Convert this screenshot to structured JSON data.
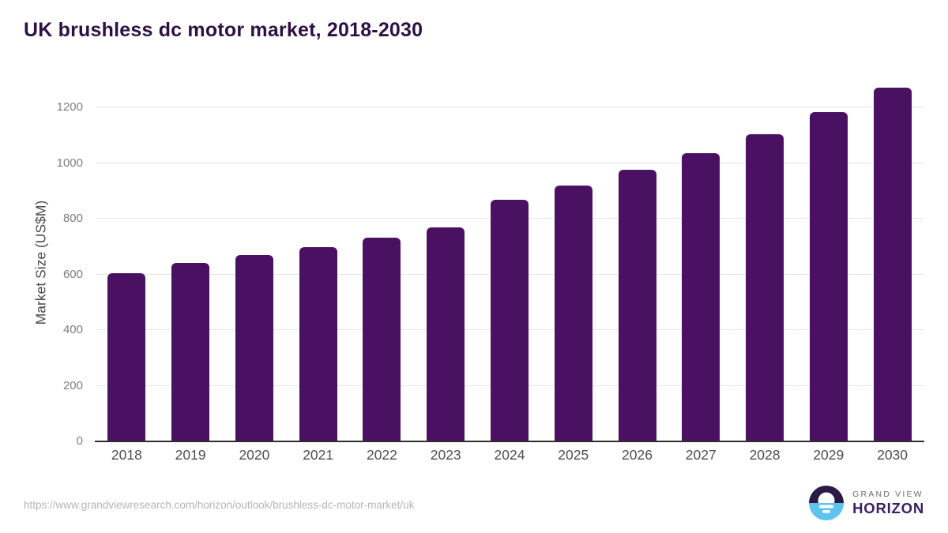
{
  "header": {
    "title": "UK brushless dc motor market, 2018-2030"
  },
  "chart_data": {
    "type": "bar",
    "title": "UK brushless dc motor market, 2018-2030",
    "categories": [
      "2018",
      "2019",
      "2020",
      "2021",
      "2022",
      "2023",
      "2024",
      "2025",
      "2026",
      "2027",
      "2028",
      "2029",
      "2030"
    ],
    "values": [
      604,
      640,
      669,
      698,
      731,
      770,
      869,
      918,
      976,
      1035,
      1105,
      1182,
      1270
    ],
    "xlabel": "",
    "ylabel": "Market Size (US$M)",
    "ylim": [
      0,
      1300
    ],
    "yticks": [
      0,
      200,
      400,
      600,
      800,
      1000,
      1200
    ],
    "grid": true,
    "legend": false,
    "bar_color": "#4a1162",
    "gridline_color": "#e4e4e4",
    "axis_line_color": "#2d2d2d"
  },
  "footer": {
    "source_url": "https://www.grandviewresearch.com/horizon/outlook/brushless-dc-motor-market/uk",
    "logo": {
      "top_label": "GRAND VIEW",
      "bottom_label": "HORIZON",
      "icon": "grand-view-horizon-sun-icon",
      "icon_dark_color": "#2b1a45",
      "icon_blue_color": "#5ec4ef",
      "wordmark_color": "#3a2063"
    }
  },
  "colors": {
    "background": "#ffffff",
    "title_text": "#2e1045",
    "tick_text": "#7e7e7e",
    "axis_label_text": "#4b4b4b",
    "url_text": "#b4b4b4"
  }
}
